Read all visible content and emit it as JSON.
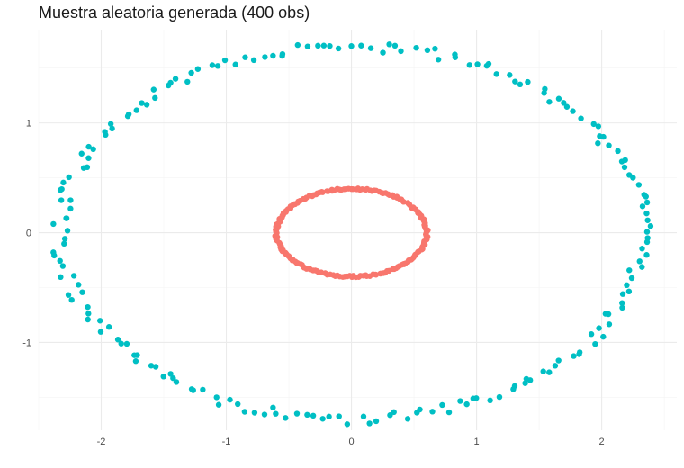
{
  "chart_data": {
    "type": "scatter",
    "title": "Muestra aleatoria generada (400 obs)",
    "xlabel": "",
    "ylabel": "",
    "xlim": [
      -2.5,
      2.6
    ],
    "ylim": [
      -1.8,
      1.85
    ],
    "x_ticks": [
      -2,
      -1,
      0,
      1,
      2
    ],
    "y_ticks": [
      -1,
      0,
      1
    ],
    "grid": true,
    "legend": "none",
    "series": [
      {
        "color": "#F8766D",
        "shape": "ellipse",
        "n": 200,
        "center": [
          0,
          0
        ],
        "radius_x": 0.6,
        "radius_y": 0.4,
        "noise": 0.02
      },
      {
        "color": "#00BFC4",
        "shape": "ellipse",
        "n": 200,
        "center": [
          0,
          0
        ],
        "radius_x": 2.33,
        "radius_y": 1.7,
        "noise": 0.03
      }
    ]
  }
}
